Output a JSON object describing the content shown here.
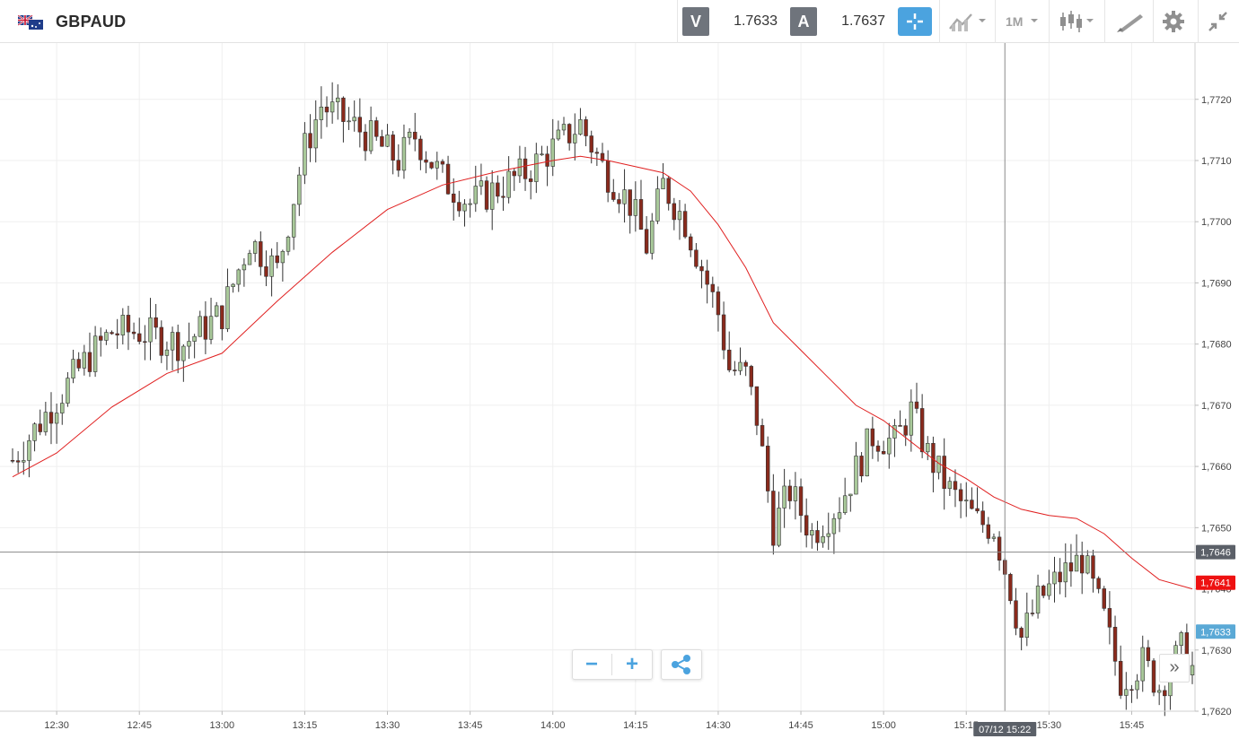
{
  "header": {
    "symbol": "GBPAUD",
    "sell_label": "V",
    "sell_price": "1.7633",
    "buy_label": "A",
    "buy_price": "1.7637",
    "timeframe": "1M"
  },
  "colors": {
    "up": "#a9c99a",
    "down": "#8a2a1c",
    "ma": "#e02020",
    "accent": "#4ba3df",
    "last_price": "#ee1111",
    "bid_tag": "#5aa9d6",
    "crosshair_tag": "#5b6068"
  },
  "chart_data": {
    "type": "candlestick",
    "instrument": "GBPAUD",
    "interval": "1M",
    "ylim": [
      1.762,
      1.7727
    ],
    "y_ticks": [
      "1,7620",
      "1,7630",
      "1,7640",
      "1,7650",
      "1,7660",
      "1,7670",
      "1,7680",
      "1,7690",
      "1,7700",
      "1,7710",
      "1,7720"
    ],
    "x_ticks": [
      "12:30",
      "12:45",
      "13:00",
      "13:15",
      "13:30",
      "13:45",
      "14:00",
      "14:15",
      "14:30",
      "14:45",
      "15:00",
      "15:15",
      "15:30",
      "15:45"
    ],
    "x_start": "12:22",
    "x_end": "15:56",
    "moving_average": [
      {
        "t": "12:22",
        "v": 1.76583
      },
      {
        "t": "12:30",
        "v": 1.76622
      },
      {
        "t": "12:40",
        "v": 1.76697
      },
      {
        "t": "12:50",
        "v": 1.76752
      },
      {
        "t": "13:00",
        "v": 1.76785
      },
      {
        "t": "13:10",
        "v": 1.7687
      },
      {
        "t": "13:20",
        "v": 1.7695
      },
      {
        "t": "13:30",
        "v": 1.7702
      },
      {
        "t": "13:40",
        "v": 1.7706
      },
      {
        "t": "13:50",
        "v": 1.77082
      },
      {
        "t": "14:00",
        "v": 1.771
      },
      {
        "t": "14:05",
        "v": 1.77107
      },
      {
        "t": "14:10",
        "v": 1.771
      },
      {
        "t": "14:20",
        "v": 1.7708
      },
      {
        "t": "14:25",
        "v": 1.7705
      },
      {
        "t": "14:30",
        "v": 1.76995
      },
      {
        "t": "14:35",
        "v": 1.76925
      },
      {
        "t": "14:40",
        "v": 1.76835
      },
      {
        "t": "14:50",
        "v": 1.76745
      },
      {
        "t": "14:55",
        "v": 1.767
      },
      {
        "t": "15:00",
        "v": 1.76675
      },
      {
        "t": "15:05",
        "v": 1.7664
      },
      {
        "t": "15:10",
        "v": 1.76605
      },
      {
        "t": "15:15",
        "v": 1.7658
      },
      {
        "t": "15:20",
        "v": 1.7655
      },
      {
        "t": "15:25",
        "v": 1.7653
      },
      {
        "t": "15:30",
        "v": 1.7652
      },
      {
        "t": "15:35",
        "v": 1.76515
      },
      {
        "t": "15:40",
        "v": 1.7649
      },
      {
        "t": "15:45",
        "v": 1.7645
      },
      {
        "t": "15:50",
        "v": 1.76415
      },
      {
        "t": "15:56",
        "v": 1.764
      }
    ],
    "anchors": [
      {
        "t": "12:22",
        "v": 1.7661
      },
      {
        "t": "12:30",
        "v": 1.7671
      },
      {
        "t": "12:35",
        "v": 1.7677
      },
      {
        "t": "12:40",
        "v": 1.7682
      },
      {
        "t": "12:45",
        "v": 1.7682
      },
      {
        "t": "12:53",
        "v": 1.768
      },
      {
        "t": "13:00",
        "v": 1.7685
      },
      {
        "t": "13:05",
        "v": 1.7697
      },
      {
        "t": "13:10",
        "v": 1.7692
      },
      {
        "t": "13:15",
        "v": 1.7712
      },
      {
        "t": "13:18",
        "v": 1.7719
      },
      {
        "t": "13:25",
        "v": 1.7715
      },
      {
        "t": "13:32",
        "v": 1.771
      },
      {
        "t": "13:35",
        "v": 1.7714
      },
      {
        "t": "13:40",
        "v": 1.7707
      },
      {
        "t": "13:45",
        "v": 1.7703
      },
      {
        "t": "13:55",
        "v": 1.7708
      },
      {
        "t": "14:00",
        "v": 1.7712
      },
      {
        "t": "14:05",
        "v": 1.7716
      },
      {
        "t": "14:09",
        "v": 1.7709
      },
      {
        "t": "14:14",
        "v": 1.7703
      },
      {
        "t": "14:17",
        "v": 1.7696
      },
      {
        "t": "14:20",
        "v": 1.7706
      },
      {
        "t": "14:24",
        "v": 1.77
      },
      {
        "t": "14:30",
        "v": 1.7685
      },
      {
        "t": "14:32",
        "v": 1.7676
      },
      {
        "t": "14:35",
        "v": 1.7675
      },
      {
        "t": "14:37",
        "v": 1.7668
      },
      {
        "t": "14:40",
        "v": 1.765
      },
      {
        "t": "14:43",
        "v": 1.7656
      },
      {
        "t": "14:47",
        "v": 1.7649
      },
      {
        "t": "14:52",
        "v": 1.7654
      },
      {
        "t": "14:58",
        "v": 1.7665
      },
      {
        "t": "15:02",
        "v": 1.7664
      },
      {
        "t": "15:05",
        "v": 1.7669
      },
      {
        "t": "15:08",
        "v": 1.7662
      },
      {
        "t": "15:12",
        "v": 1.7656
      },
      {
        "t": "15:17",
        "v": 1.7651
      },
      {
        "t": "15:20",
        "v": 1.765
      },
      {
        "t": "15:23",
        "v": 1.764
      },
      {
        "t": "15:25",
        "v": 1.7632
      },
      {
        "t": "15:28",
        "v": 1.7638
      },
      {
        "t": "15:32",
        "v": 1.7642
      },
      {
        "t": "15:36",
        "v": 1.7645
      },
      {
        "t": "15:40",
        "v": 1.7635
      },
      {
        "t": "15:43",
        "v": 1.7625
      },
      {
        "t": "15:47",
        "v": 1.7628
      },
      {
        "t": "15:50",
        "v": 1.7624
      },
      {
        "t": "15:54",
        "v": 1.763
      },
      {
        "t": "15:56",
        "v": 1.7627
      }
    ],
    "crosshair": {
      "price": "1,7646",
      "time": "07/12 15:22",
      "t": "15:22",
      "v": 1.7646
    },
    "last_price": {
      "label": "1,7641",
      "v": 1.7641
    },
    "bid_price": {
      "label": "1,7633",
      "v": 1.7633
    }
  }
}
